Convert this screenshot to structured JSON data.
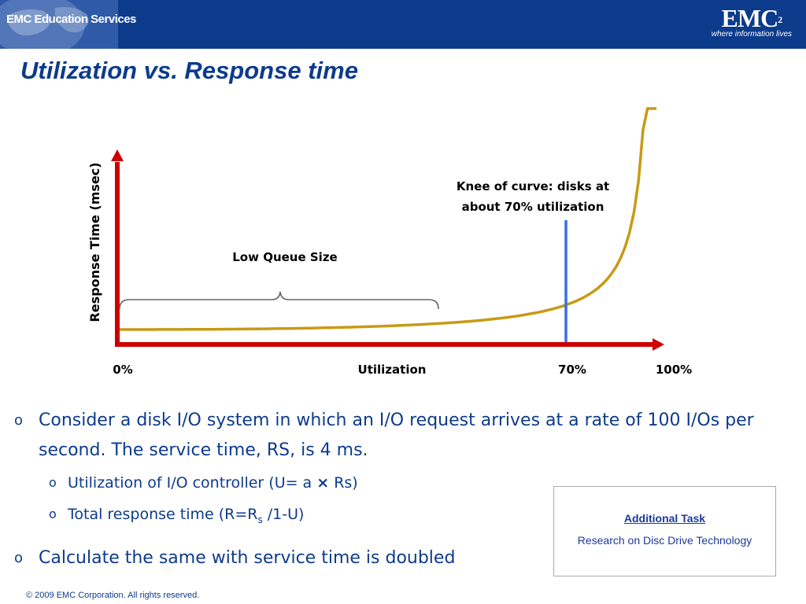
{
  "header": {
    "left_logo_text": "EMC Education Services",
    "brand_logo": "EMC",
    "brand_superscript": "2",
    "brand_tagline": "where information lives"
  },
  "slide": {
    "title": "Utilization vs. Response time"
  },
  "chart_data": {
    "type": "line",
    "title": "",
    "xlabel": "Utilization",
    "ylabel": "Response Time (msec)",
    "x_tick_labels": [
      "0%",
      "70%",
      "100%"
    ],
    "annotations": {
      "knee_line1": "Knee of curve: disks at",
      "knee_line2": "about 70% utilization",
      "brace_label": "Low Queue Size"
    },
    "knee_x_percent": 70,
    "curve_color": "#c89a15",
    "axis_color": "#cc0000",
    "knee_line_color": "#3a6fe0",
    "brace_color": "#666666"
  },
  "bullets": [
    {
      "marker": "o",
      "text": "Consider a disk I/O system in which an I/O request arrives at a rate of 100 I/Os per second. The service time, RS, is 4 ms."
    },
    {
      "marker": "o",
      "text_before": "Utilization of I/O controller (U= a ",
      "multiply_symbol": "×",
      "text_after": " Rs)"
    },
    {
      "marker": "o",
      "text_before": "Total response time (R=R",
      "subscript": "s",
      "text_after": " /1-U)"
    },
    {
      "marker": "o",
      "text": "Calculate the same with service time is doubled"
    }
  ],
  "task_box": {
    "title": "Additional Task",
    "text": "Research on Disc Drive Technology"
  },
  "footer": {
    "copyright": "© 2009 EMC Corporation. All rights reserved."
  }
}
